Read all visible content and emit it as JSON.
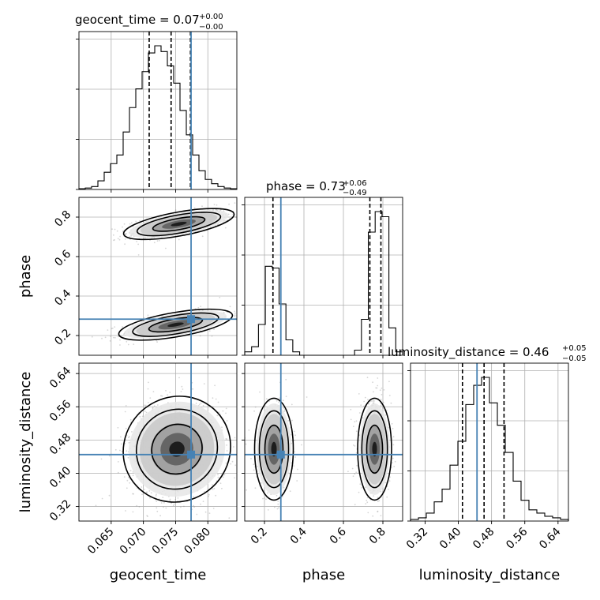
{
  "figure": {
    "type": "corner_plot",
    "truth_color": "#4682b4"
  },
  "chart_data": {
    "type": "corner",
    "parameters": [
      {
        "name": "geocent_time",
        "axis_label": "geocent_time",
        "title_main": "geocent_time = 0.07",
        "title_sup": "+0.00",
        "title_sub": "−0.00",
        "range": [
          0.06,
          0.0845
        ],
        "ticks": [
          "0.065",
          "0.070",
          "0.075",
          "0.080"
        ],
        "tick_values": [
          0.065,
          0.07,
          0.075,
          0.08
        ],
        "truth": 0.0774,
        "quantiles": [
          0.0709,
          0.0743,
          0.0773
        ],
        "histogram": [
          0.005,
          0.01,
          0.02,
          0.06,
          0.12,
          0.18,
          0.24,
          0.4,
          0.57,
          0.7,
          0.82,
          0.95,
          1.0,
          0.96,
          0.86,
          0.74,
          0.55,
          0.38,
          0.24,
          0.13,
          0.07,
          0.04,
          0.02,
          0.01,
          0.005
        ]
      },
      {
        "name": "phase",
        "axis_label": "phase",
        "title_main": "phase = 0.73",
        "title_sup": "+0.06",
        "title_sub": "−0.49",
        "range": [
          0.1,
          0.9
        ],
        "ticks": [
          "0.2",
          "0.4",
          "0.6",
          "0.8"
        ],
        "tick_values": [
          0.2,
          0.4,
          0.6,
          0.8
        ],
        "truth": 0.283,
        "quantiles": [
          0.243,
          0.734,
          0.79
        ],
        "histogram": [
          0.02,
          0.05,
          0.18,
          0.52,
          0.51,
          0.3,
          0.09,
          0.02,
          0,
          0,
          0,
          0,
          0,
          0,
          0,
          0,
          0.03,
          0.21,
          0.72,
          0.84,
          0.81,
          0.16,
          0.02
        ]
      },
      {
        "name": "luminosity_distance",
        "axis_label": "luminosity_distance",
        "title_main": "luminosity_distance = 0.46",
        "title_sup": "+0.05",
        "title_sub": "−0.05",
        "range": [
          0.285,
          0.665
        ],
        "ticks": [
          "0.32",
          "0.40",
          "0.48",
          "0.56",
          "0.64"
        ],
        "tick_values": [
          0.32,
          0.4,
          0.48,
          0.56,
          0.64
        ],
        "truth": 0.445,
        "quantiles": [
          0.41,
          0.462,
          0.51
        ],
        "histogram": [
          0.01,
          0.02,
          0.05,
          0.12,
          0.2,
          0.35,
          0.5,
          0.73,
          0.85,
          0.9,
          0.74,
          0.6,
          0.43,
          0.25,
          0.13,
          0.07,
          0.05,
          0.03,
          0.02,
          0.01
        ]
      }
    ],
    "pairs": [
      {
        "x": "geocent_time",
        "y": "phase",
        "modes": [
          {
            "cx": 0.0755,
            "cy": 0.765,
            "sx": 0.0035,
            "sy": 0.032,
            "rho": 0.62,
            "weight": 0.6
          },
          {
            "cx": 0.075,
            "cy": 0.255,
            "sx": 0.0036,
            "sy": 0.032,
            "rho": 0.6,
            "weight": 0.4
          }
        ]
      },
      {
        "x": "geocent_time",
        "y": "luminosity_distance",
        "modes": [
          {
            "cx": 0.0752,
            "cy": 0.458,
            "sx": 0.0034,
            "sy": 0.052,
            "rho": 0.05,
            "weight": 1.0
          }
        ]
      },
      {
        "x": "phase",
        "y": "luminosity_distance",
        "modes": [
          {
            "cx": 0.248,
            "cy": 0.458,
            "sx": 0.04,
            "sy": 0.05,
            "rho": 0.0,
            "weight": 0.4
          },
          {
            "cx": 0.758,
            "cy": 0.458,
            "sx": 0.035,
            "sy": 0.05,
            "rho": 0.0,
            "weight": 0.6
          }
        ]
      }
    ],
    "grid": true
  }
}
